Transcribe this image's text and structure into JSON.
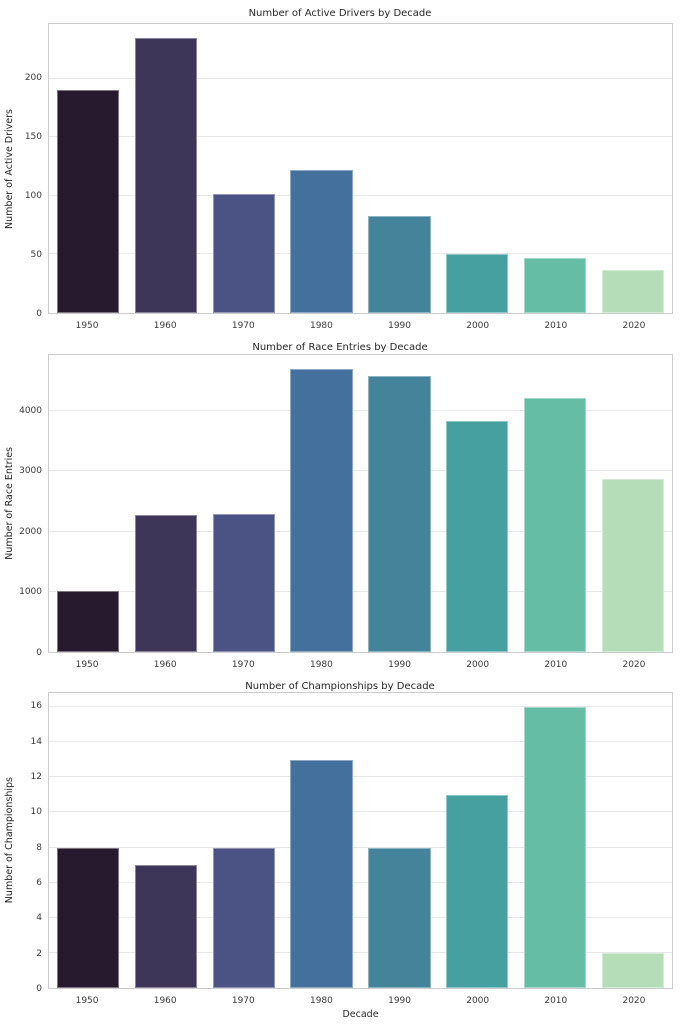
{
  "figure": {
    "background": "#ffffff",
    "grid_color": "#e7e7e7",
    "spine_color": "#cccccc",
    "text_color": "#262626"
  },
  "palette": [
    "#281a2e",
    "#3e3659",
    "#4b5385",
    "#44709d",
    "#44839a",
    "#47a0a0",
    "#65bda5",
    "#b5deb8"
  ],
  "chart_data": [
    {
      "type": "bar",
      "title": "Number of Active Drivers by Decade",
      "xlabel": "",
      "ylabel": "Number of Active Drivers",
      "categories": [
        "1950",
        "1960",
        "1970",
        "1980",
        "1990",
        "2000",
        "2010",
        "2020"
      ],
      "values": [
        190,
        235,
        102,
        122,
        83,
        50,
        47,
        37
      ],
      "yticks": [
        0,
        50,
        100,
        150,
        200
      ],
      "ylim": [
        0,
        246.75
      ],
      "grid": true,
      "legend": "none"
    },
    {
      "type": "bar",
      "title": "Number of Race Entries by Decade",
      "xlabel": "",
      "ylabel": "Number of Race Entries",
      "categories": [
        "1950",
        "1960",
        "1970",
        "1980",
        "1990",
        "2000",
        "2010",
        "2020"
      ],
      "values": [
        1020,
        2270,
        2300,
        4700,
        4580,
        3840,
        4220,
        2880
      ],
      "yticks": [
        0,
        1000,
        2000,
        3000,
        4000
      ],
      "ylim": [
        0,
        4935
      ],
      "grid": true,
      "legend": "none"
    },
    {
      "type": "bar",
      "title": "Number of Championships by Decade",
      "xlabel": "Decade",
      "ylabel": "Number of Championships",
      "categories": [
        "1950",
        "1960",
        "1970",
        "1980",
        "1990",
        "2000",
        "2010",
        "2020"
      ],
      "values": [
        8,
        7,
        8,
        13,
        8,
        11,
        16,
        2
      ],
      "yticks": [
        0,
        2,
        4,
        6,
        8,
        10,
        12,
        14,
        16
      ],
      "ylim": [
        0,
        16.8
      ],
      "grid": true,
      "legend": "none"
    }
  ]
}
